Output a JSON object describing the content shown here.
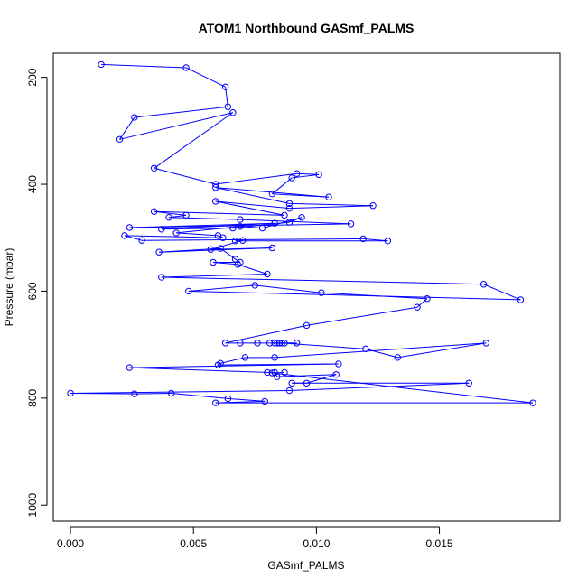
{
  "chart_data": {
    "type": "scatter",
    "title": "ATOM1 Northbound GASmf_PALMS",
    "xlabel": "GASmf_PALMS",
    "ylabel": "Pressure (mbar)",
    "xlim": [
      -0.0007,
      0.0199
    ],
    "ylim": [
      1030,
      155
    ],
    "y_reversed": true,
    "xticks": [
      0.0,
      0.005,
      0.01,
      0.015
    ],
    "xtick_labels": [
      "0.000",
      "0.005",
      "0.010",
      "0.015"
    ],
    "yticks": [
      200,
      400,
      600,
      800,
      1000
    ],
    "ytick_labels": [
      "200",
      "400",
      "600",
      "800",
      "1000"
    ],
    "line_color": "#0000ff",
    "marker": "open-circle",
    "grid": false,
    "legend": "none",
    "series": [
      {
        "name": "",
        "x": [
          0.00125,
          0.0047,
          0.0063,
          0.0064,
          0.0026,
          0.002,
          0.0066,
          0.0034,
          0.0059,
          0.0092,
          0.0101,
          0.009,
          0.0082,
          0.0105,
          0.0059,
          0.0089,
          0.0123,
          0.0089,
          0.0059,
          0.0087,
          0.0034,
          0.0047,
          0.004,
          0.0069,
          0.0114,
          0.0024,
          0.0083,
          0.0037,
          0.0066,
          0.0089,
          0.0094,
          0.0078,
          0.0069,
          0.0043,
          0.006,
          0.0062,
          0.0022,
          0.0029,
          0.0119,
          0.0129,
          0.0067,
          0.007,
          0.0057,
          0.0082,
          0.0036,
          0.0061,
          0.0067,
          0.0069,
          0.0058,
          0.0068,
          0.008,
          0.0037,
          0.0168,
          0.0183,
          0.0048,
          0.0075,
          0.0102,
          0.0145,
          0.0141,
          0.0096,
          0.0063,
          0.0069,
          0.0076,
          0.0081,
          0.0084,
          0.0087,
          0.0092,
          0.0085,
          0.0083,
          0.0086,
          0.012,
          0.0133,
          0.0169,
          0.0083,
          0.0071,
          0.0061,
          0.006,
          0.0109,
          0.0024,
          0.008,
          0.0083,
          0.0084,
          0.0108,
          0.0096,
          0.009,
          0.0162,
          0.0089,
          0.0,
          0.0026,
          0.0041,
          0.0064,
          0.0079,
          0.0059,
          0.0188,
          0.0082,
          0.0087
        ],
        "y": [
          176,
          182,
          218,
          255,
          275,
          316,
          266,
          370,
          400,
          380,
          382,
          388,
          418,
          424,
          406,
          436,
          440,
          445,
          432,
          458,
          451,
          458,
          462,
          466,
          474,
          481,
          473,
          484,
          482,
          471,
          462,
          482,
          479,
          491,
          496,
          500,
          496,
          505,
          502,
          506,
          506,
          505,
          522,
          519,
          527,
          520,
          540,
          546,
          546,
          550,
          568,
          574,
          587,
          616,
          600,
          589,
          603,
          614,
          630,
          664,
          697,
          697,
          697,
          697,
          697,
          697,
          697,
          697,
          697,
          697,
          708,
          724,
          697,
          724,
          724,
          735,
          738,
          736,
          743,
          752,
          752,
          760,
          756,
          772,
          772,
          772,
          786,
          791,
          792,
          791,
          801,
          806,
          809,
          809,
          753,
          752
        ]
      }
    ]
  }
}
